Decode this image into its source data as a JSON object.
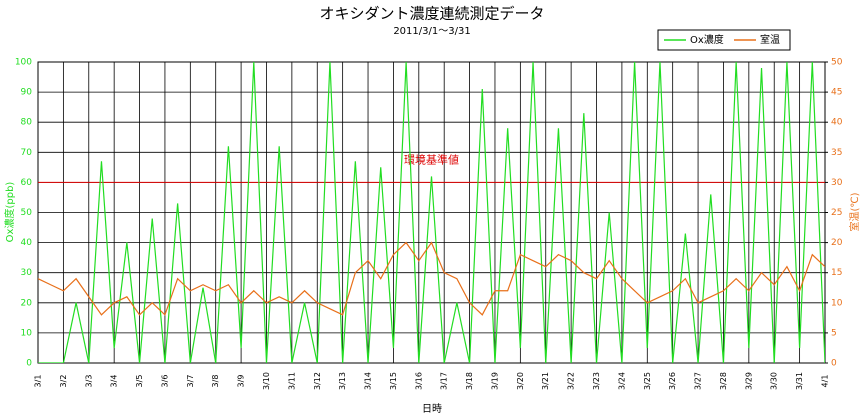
{
  "chart_data": {
    "type": "line",
    "title": "オキシダント濃度連続測定データ",
    "subtitle": "2011/3/1～3/31",
    "x_label": "日時",
    "y_label": "Ox濃度(ppb)",
    "y2_label": "室温(℃)",
    "annotation": {
      "text": "環境基準値",
      "value": 60,
      "color": "#dd0000"
    },
    "x": [
      0,
      0.5,
      1,
      1.5,
      2,
      2.5,
      3,
      3.5,
      4,
      4.5,
      5,
      5.5,
      6,
      6.5,
      7,
      7.5,
      8,
      8.5,
      9,
      9.5,
      10,
      10.5,
      11,
      11.5,
      12,
      12.5,
      13,
      13.5,
      14,
      14.5,
      15,
      15.5,
      16,
      16.5,
      17,
      17.5,
      18,
      18.5,
      19,
      19.5,
      20,
      20.5,
      21,
      21.5,
      22,
      22.5,
      23,
      23.5,
      24,
      24.5,
      25,
      25.5,
      26,
      26.5,
      27,
      27.5,
      28,
      28.5,
      29,
      29.5,
      30,
      30.5,
      31
    ],
    "series": [
      {
        "name": "Ox濃度",
        "color": "#22dd22",
        "values": [
          0,
          0,
          0,
          20,
          0,
          67,
          5,
          40,
          0,
          48,
          0,
          53,
          0,
          25,
          0,
          72,
          5,
          100,
          0,
          72,
          0,
          20,
          0,
          100,
          0,
          67,
          0,
          65,
          5,
          100,
          0,
          62,
          0,
          20,
          0,
          91,
          0,
          78,
          5,
          100,
          0,
          78,
          0,
          83,
          0,
          50,
          0,
          100,
          5,
          100,
          0,
          43,
          0,
          56,
          0,
          100,
          5,
          98,
          0,
          100,
          5,
          100,
          0
        ]
      },
      {
        "name": "室温",
        "color": "#e8701a",
        "axis": "y2",
        "values": [
          14,
          13,
          12,
          14,
          11,
          8,
          10,
          11,
          8,
          10,
          8,
          14,
          12,
          13,
          12,
          13,
          10,
          12,
          10,
          11,
          10,
          12,
          10,
          9,
          8,
          15,
          17,
          14,
          18,
          20,
          17,
          20,
          15,
          14,
          10,
          8,
          12,
          12,
          18,
          17,
          16,
          18,
          17,
          15,
          14,
          17,
          14,
          12,
          10,
          11,
          12,
          14,
          10,
          11,
          12,
          14,
          12,
          15,
          13,
          16,
          12,
          18,
          16
        ]
      }
    ],
    "xlim": [
      0,
      31
    ],
    "xticks": [
      {
        "value": 0,
        "label": "3/1"
      },
      {
        "value": 1,
        "label": "3/2"
      },
      {
        "value": 2,
        "label": "3/3"
      },
      {
        "value": 3,
        "label": "3/4"
      },
      {
        "value": 4,
        "label": "3/5"
      },
      {
        "value": 5,
        "label": "3/6"
      },
      {
        "value": 6,
        "label": "3/7"
      },
      {
        "value": 7,
        "label": "3/8"
      },
      {
        "value": 8,
        "label": "3/9"
      },
      {
        "value": 9,
        "label": "3/10"
      },
      {
        "value": 10,
        "label": "3/11"
      },
      {
        "value": 11,
        "label": "3/12"
      },
      {
        "value": 12,
        "label": "3/13"
      },
      {
        "value": 13,
        "label": "3/14"
      },
      {
        "value": 14,
        "label": "3/15"
      },
      {
        "value": 15,
        "label": "3/16"
      },
      {
        "value": 16,
        "label": "3/17"
      },
      {
        "value": 17,
        "label": "3/18"
      },
      {
        "value": 18,
        "label": "3/19"
      },
      {
        "value": 19,
        "label": "3/20"
      },
      {
        "value": 20,
        "label": "3/21"
      },
      {
        "value": 21,
        "label": "3/22"
      },
      {
        "value": 22,
        "label": "3/23"
      },
      {
        "value": 23,
        "label": "3/24"
      },
      {
        "value": 24,
        "label": "3/25"
      },
      {
        "value": 25,
        "label": "3/26"
      },
      {
        "value": 26,
        "label": "3/27"
      },
      {
        "value": 27,
        "label": "3/28"
      },
      {
        "value": 28,
        "label": "3/29"
      },
      {
        "value": 29,
        "label": "3/30"
      },
      {
        "value": 30,
        "label": "3/31"
      },
      {
        "value": 31,
        "label": "4/1"
      }
    ],
    "ylim": [
      0,
      100
    ],
    "yticks": [
      0,
      10,
      20,
      30,
      40,
      50,
      60,
      70,
      80,
      90,
      100
    ],
    "y2lim": [
      0,
      50
    ],
    "y2ticks": [
      0,
      5,
      10,
      15,
      20,
      25,
      30,
      35,
      40,
      45,
      50
    ],
    "grid": true,
    "legend": "top-right"
  }
}
